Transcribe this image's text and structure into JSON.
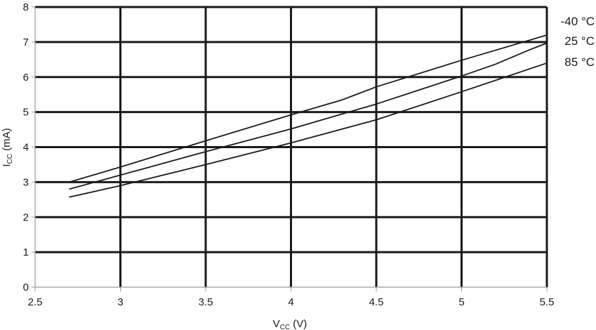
{
  "chart_data": {
    "type": "line",
    "xlabel": {
      "main": "V",
      "sub": "CC",
      "unit": " (V)"
    },
    "ylabel": {
      "main": "I",
      "sub": "CC",
      "unit": " (mA)"
    },
    "xlim": [
      2.5,
      5.5
    ],
    "ylim": [
      0,
      8
    ],
    "x_ticks": [
      "2.5",
      "3",
      "3.5",
      "4",
      "4.5",
      "5",
      "5.5"
    ],
    "y_ticks": [
      "0",
      "1",
      "2",
      "3",
      "4",
      "5",
      "6",
      "7",
      "8"
    ],
    "grid": true,
    "colors": {
      "line": "#1a1a1a",
      "grid": "#1a1a1a",
      "axis": "#9a9a9a"
    },
    "series": [
      {
        "name": "-40 °C",
        "x": [
          2.7,
          3.0,
          3.5,
          4.0,
          4.3,
          4.5,
          5.0,
          5.5
        ],
        "y": [
          3.0,
          3.43,
          4.18,
          4.92,
          5.35,
          5.72,
          6.48,
          7.2
        ]
      },
      {
        "name": "25 °C",
        "x": [
          2.7,
          3.0,
          3.5,
          4.0,
          4.5,
          5.0,
          5.2,
          5.4,
          5.5
        ],
        "y": [
          2.8,
          3.2,
          3.87,
          4.52,
          5.23,
          6.03,
          6.37,
          6.78,
          6.97
        ]
      },
      {
        "name": "85 °C",
        "x": [
          2.7,
          3.0,
          3.5,
          4.0,
          4.5,
          5.0,
          5.5
        ],
        "y": [
          2.57,
          2.9,
          3.5,
          4.12,
          4.78,
          5.58,
          6.4
        ]
      }
    ]
  }
}
